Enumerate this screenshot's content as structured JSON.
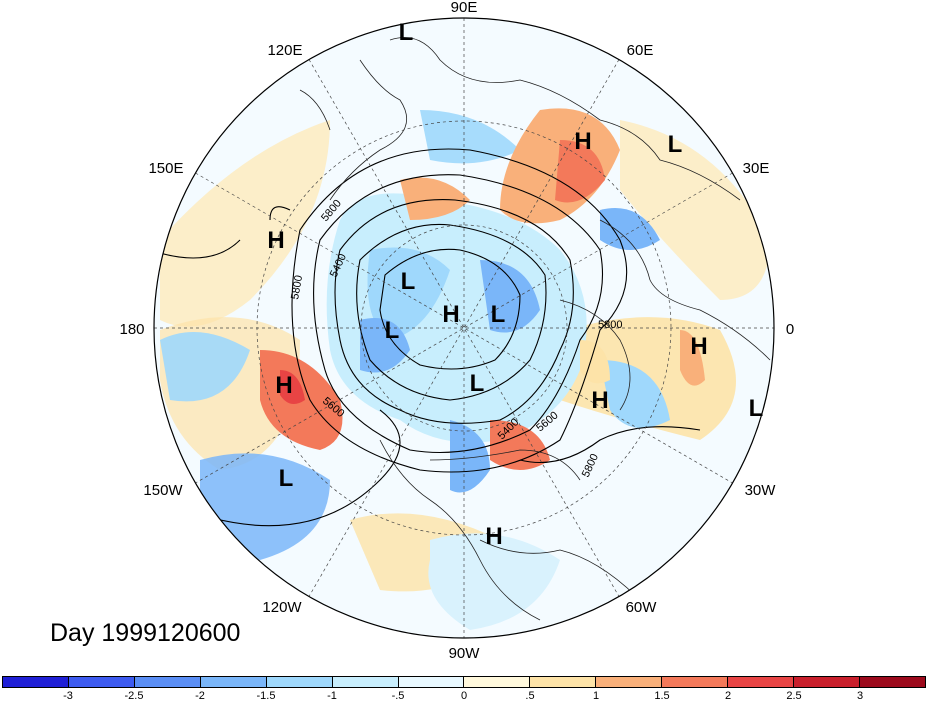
{
  "map": {
    "projection": "polar-stereographic-north",
    "longitude_labels": [
      "90E",
      "60E",
      "30E",
      "0",
      "30W",
      "60W",
      "90W",
      "120W",
      "150W",
      "180",
      "150E",
      "120E"
    ],
    "contour_labels": [
      "5800",
      "5400",
      "5800",
      "5600",
      "5600",
      "5800",
      "5800",
      "5400"
    ],
    "pressure_centers": [
      {
        "type": "L",
        "region": "north-central Asia"
      },
      {
        "type": "L",
        "region": "Europe / Scandinavia"
      },
      {
        "type": "H",
        "region": "western Siberia"
      },
      {
        "type": "H",
        "region": "North Pacific (Kamchatka)"
      },
      {
        "type": "L",
        "region": "East Siberia"
      },
      {
        "type": "H",
        "region": "North Pole"
      },
      {
        "type": "L",
        "region": "Barents Sea"
      },
      {
        "type": "L",
        "region": "Bering Strait"
      },
      {
        "type": "H",
        "region": "Gulf of Alaska"
      },
      {
        "type": "L",
        "region": "Canadian Arctic"
      },
      {
        "type": "H",
        "region": "North Africa"
      },
      {
        "type": "H",
        "region": "Central North Atlantic"
      },
      {
        "type": "L",
        "region": "Subtropical Atlantic"
      },
      {
        "type": "L",
        "region": "Subtropical NE Pacific"
      },
      {
        "type": "H",
        "region": "Caribbean"
      }
    ]
  },
  "caption": {
    "day_text": "Day 1999120600"
  },
  "colorbar": {
    "ticks": [
      "-3",
      "-2.5",
      "-2",
      "-1.5",
      "-1",
      "-.5",
      "0",
      ".5",
      "1",
      "1.5",
      "2",
      "2.5",
      "3"
    ],
    "colors": [
      "#1f1fd6",
      "#3d5bf0",
      "#5a8ef5",
      "#7ab6f9",
      "#9fd8fc",
      "#c8eefd",
      "#e8f8ff",
      "#fff8dc",
      "#fde3a8",
      "#f9b07a",
      "#f3795a",
      "#e84444",
      "#c91f2c",
      "#9c0a1c"
    ]
  }
}
